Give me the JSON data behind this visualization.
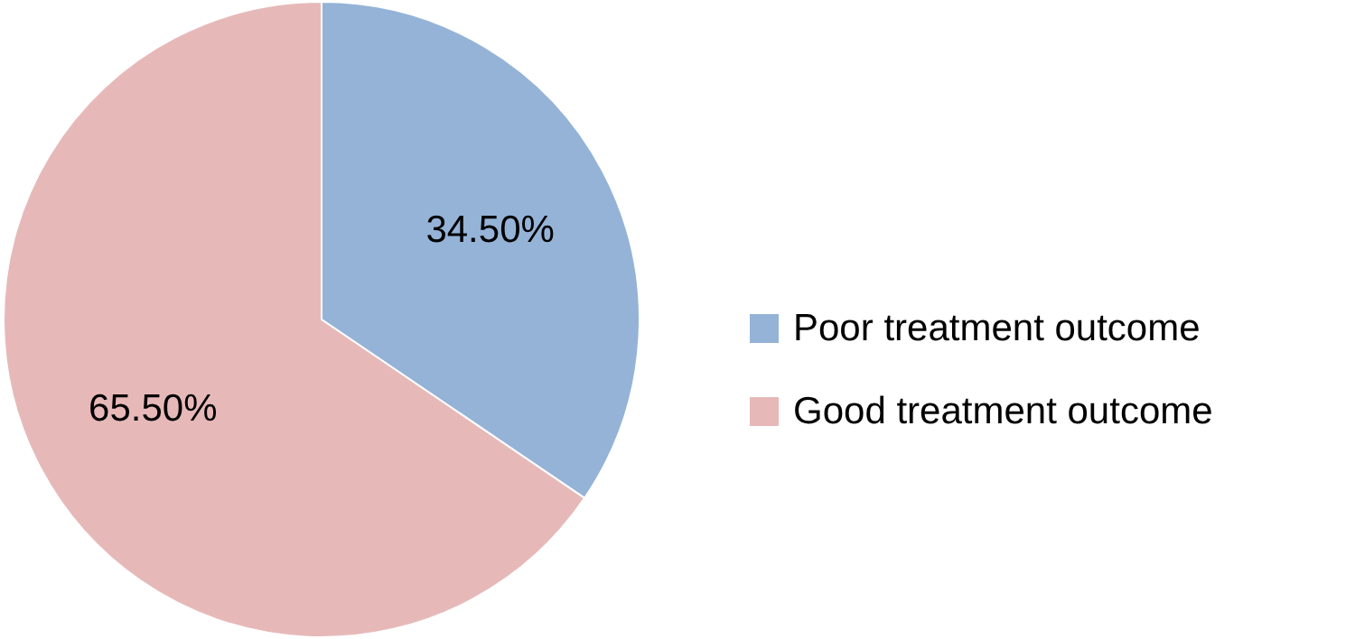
{
  "chart_data": {
    "type": "pie",
    "categories": [
      "Poor treatment outcome",
      "Good treatment outcome"
    ],
    "values": [
      34.5,
      65.5
    ],
    "colors": [
      "#95b3d7",
      "#e6b9b8"
    ],
    "value_labels": [
      "34.50%",
      "65.50%"
    ],
    "legend": "right"
  }
}
